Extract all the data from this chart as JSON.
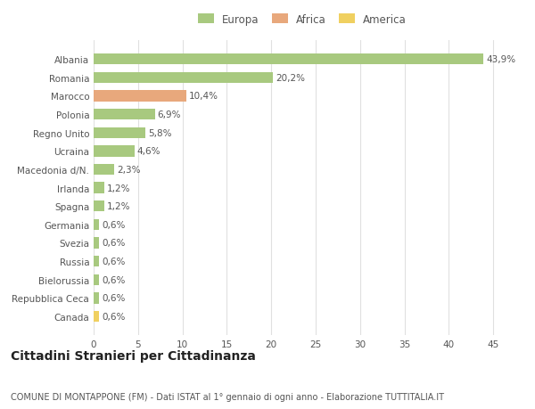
{
  "categories": [
    "Albania",
    "Romania",
    "Marocco",
    "Polonia",
    "Regno Unito",
    "Ucraina",
    "Macedonia d/N.",
    "Irlanda",
    "Spagna",
    "Germania",
    "Svezia",
    "Russia",
    "Bielorussia",
    "Repubblica Ceca",
    "Canada"
  ],
  "values": [
    43.9,
    20.2,
    10.4,
    6.9,
    5.8,
    4.6,
    2.3,
    1.2,
    1.2,
    0.6,
    0.6,
    0.6,
    0.6,
    0.6,
    0.6
  ],
  "labels": [
    "43,9%",
    "20,2%",
    "10,4%",
    "6,9%",
    "5,8%",
    "4,6%",
    "2,3%",
    "1,2%",
    "1,2%",
    "0,6%",
    "0,6%",
    "0,6%",
    "0,6%",
    "0,6%",
    "0,6%"
  ],
  "continent": [
    "Europa",
    "Europa",
    "Africa",
    "Europa",
    "Europa",
    "Europa",
    "Europa",
    "Europa",
    "Europa",
    "Europa",
    "Europa",
    "Europa",
    "Europa",
    "Europa",
    "America"
  ],
  "colors": {
    "Europa": "#a8c97f",
    "Africa": "#e8a87c",
    "America": "#f0d060"
  },
  "xlim": [
    0,
    47
  ],
  "xticks": [
    0,
    5,
    10,
    15,
    20,
    25,
    30,
    35,
    40,
    45
  ],
  "title": "Cittadini Stranieri per Cittadinanza",
  "subtitle": "COMUNE DI MONTAPPONE (FM) - Dati ISTAT al 1° gennaio di ogni anno - Elaborazione TUTTITALIA.IT",
  "background_color": "#ffffff",
  "grid_color": "#e0e0e0",
  "bar_height": 0.6,
  "label_fontsize": 7.5,
  "tick_fontsize": 7.5,
  "title_fontsize": 10,
  "subtitle_fontsize": 7,
  "legend_fontsize": 8.5
}
